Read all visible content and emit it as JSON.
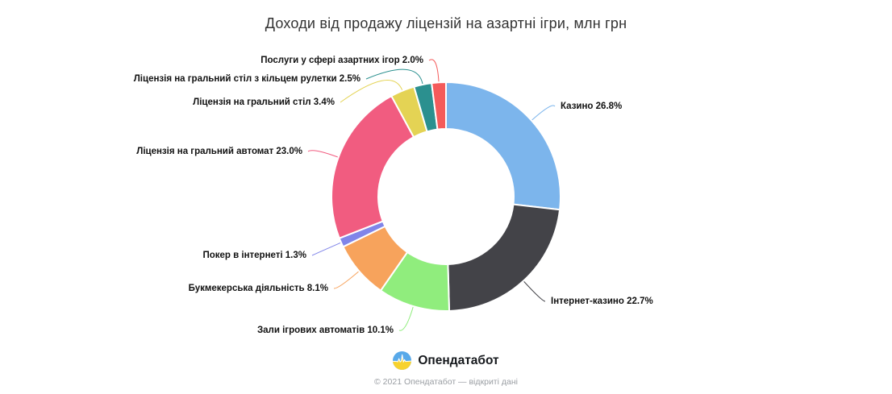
{
  "chart": {
    "title": "Доходи від продажу ліцензій на азартні ігри, млн грн"
  },
  "chart_data": {
    "type": "pie",
    "subtype": "donut",
    "title": "Доходи від продажу ліцензій на азартні ігри, млн грн",
    "unit": "%",
    "legend": "none",
    "start_angle_deg": 0,
    "direction": "clockwise",
    "inner_radius_ratio": 0.59,
    "slices": [
      {
        "label": "Казино",
        "value": 26.8,
        "display": "Казино 26.8%",
        "color": "#7cb5ec"
      },
      {
        "label": "Інтернет-казино",
        "value": 22.7,
        "display": "Інтернет-казино 22.7%",
        "color": "#434348"
      },
      {
        "label": "Зали ігрових автоматів",
        "value": 10.1,
        "display": "Зали ігрових автоматів 10.1%",
        "color": "#90ed7d"
      },
      {
        "label": "Букмекерська діяльність",
        "value": 8.1,
        "display": "Букмекерська діяльність 8.1%",
        "color": "#f7a35c"
      },
      {
        "label": "Покер в інтернеті",
        "value": 1.3,
        "display": "Покер в інтернеті 1.3%",
        "color": "#8085e9"
      },
      {
        "label": "Ліцензія на гральний автомат",
        "value": 23.0,
        "display": "Ліцензія на гральний автомат 23.0%",
        "color": "#f15c80"
      },
      {
        "label": "Ліцензія на гральний стіл",
        "value": 3.4,
        "display": "Ліцензія на гральний стіл 3.4%",
        "color": "#e4d354"
      },
      {
        "label": "Ліцензія на гральний стіл з кільцем рулетки",
        "value": 2.5,
        "display": "Ліцензія на гральний стіл з кільцем рулетки 2.5%",
        "color": "#2b908f"
      },
      {
        "label": "Послуги у сфері азартних ігор",
        "value": 2.0,
        "display": "Послуги у сфері азартних ігор 2.0%",
        "color": "#f45b5b"
      }
    ]
  },
  "footer": {
    "brand": "Опендатабот",
    "copyright": "© 2021 Опендатабот — відкриті дані",
    "logo_colors": {
      "blue": "#58a9e9",
      "yellow": "#f7d22e"
    }
  }
}
